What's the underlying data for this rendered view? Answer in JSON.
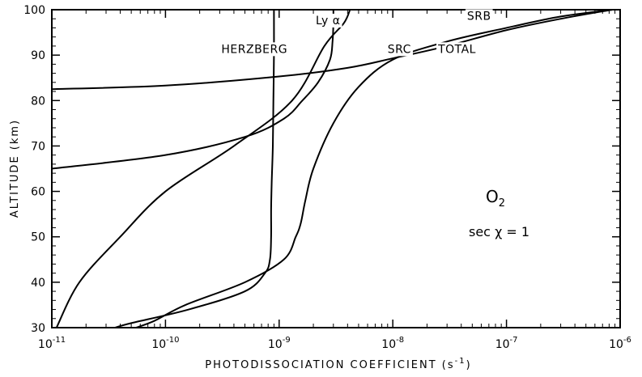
{
  "chart_data": {
    "type": "line",
    "xlabel_text": "PHOTODISSOCIATION COEFFICIENT (s",
    "xlabel_unit_exp": "-1",
    "xlabel_tail": ")",
    "ylabel": "ALTITUDE (km)",
    "x_scale": "log",
    "xlim": [
      1e-11,
      1e-06
    ],
    "ylim": [
      30,
      100
    ],
    "x_ticks": [
      {
        "base": "10",
        "exp": "-11",
        "value": 1e-11
      },
      {
        "base": "10",
        "exp": "-10",
        "value": 1e-10
      },
      {
        "base": "10",
        "exp": "-9",
        "value": 1e-09
      },
      {
        "base": "10",
        "exp": "-8",
        "value": 1e-08
      },
      {
        "base": "10",
        "exp": "-7",
        "value": 1e-07
      },
      {
        "base": "10",
        "exp": "-6",
        "value": 1e-06
      }
    ],
    "y_ticks": [
      "30",
      "40",
      "50",
      "60",
      "70",
      "80",
      "90",
      "100"
    ],
    "grid": false,
    "annotation": {
      "molecule": "O",
      "molecule_sub": "2",
      "condition": "sec χ = 1"
    },
    "series": [
      {
        "name": "HERZBERG",
        "points": [
          [
            9e-10,
            100
          ],
          [
            9e-10,
            90
          ],
          [
            8.9e-10,
            80
          ],
          [
            8.8e-10,
            70
          ],
          [
            8.6e-10,
            62
          ],
          [
            8.5e-10,
            56
          ],
          [
            8.5e-10,
            50
          ],
          [
            8.3e-10,
            45
          ],
          [
            7.5e-10,
            42
          ],
          [
            5e-10,
            38
          ],
          [
            1.6e-10,
            34
          ],
          [
            5e-11,
            31
          ],
          [
            3.6e-11,
            30
          ]
        ]
      },
      {
        "name": "Ly α",
        "points": [
          [
            3e-09,
            100
          ],
          [
            3e-09,
            97
          ],
          [
            2.95e-09,
            93
          ],
          [
            2.8e-09,
            89
          ],
          [
            2.2e-09,
            84
          ],
          [
            1.6e-09,
            80
          ],
          [
            1.1e-09,
            76
          ],
          [
            5e-10,
            72
          ],
          [
            1e-10,
            68
          ],
          [
            1e-11,
            65
          ]
        ]
      },
      {
        "name": "SRC",
        "points": [
          [
            1e-11,
            82.5
          ],
          [
            1e-10,
            83.3
          ],
          [
            1e-09,
            85.3
          ],
          [
            4e-09,
            87.2
          ],
          [
            1e-08,
            89.3
          ],
          [
            3e-08,
            92.0
          ],
          [
            1e-07,
            95.5
          ],
          [
            3e-07,
            98.0
          ],
          [
            8.5e-07,
            100
          ]
        ]
      },
      {
        "name": "SRB",
        "points": [
          [
            4.2e-09,
            100
          ],
          [
            3.7e-09,
            97
          ],
          [
            2.5e-09,
            92
          ],
          [
            1.3e-09,
            80
          ],
          [
            4e-10,
            70
          ],
          [
            1e-10,
            60
          ],
          [
            4e-11,
            50
          ],
          [
            1.75e-11,
            40
          ],
          [
            1.1e-11,
            30
          ]
        ]
      },
      {
        "name": "TOTAL",
        "points": [
          [
            8.5e-07,
            100
          ],
          [
            3e-07,
            98.5
          ],
          [
            1e-07,
            96
          ],
          [
            3e-08,
            93
          ],
          [
            1e-08,
            89
          ],
          [
            5e-09,
            83
          ],
          [
            3e-09,
            75
          ],
          [
            2e-09,
            65
          ],
          [
            1.7e-09,
            58
          ],
          [
            1.55e-09,
            53
          ],
          [
            1.4e-09,
            50
          ],
          [
            1.1e-09,
            45
          ],
          [
            5e-10,
            40
          ],
          [
            1.5e-10,
            35
          ],
          [
            8e-11,
            31.5
          ],
          [
            5.5e-11,
            30
          ]
        ]
      }
    ],
    "curve_labels": [
      {
        "text": "HERZBERG",
        "x": 3.1e-10,
        "y": 90.5
      },
      {
        "text": "Ly α",
        "x": 2.1e-09,
        "y": 96.8
      },
      {
        "text": "SRC",
        "x": 9e-09,
        "y": 90.5
      },
      {
        "text": "SRB",
        "x": 4.5e-08,
        "y": 97.8
      },
      {
        "text": "TOTAL",
        "x": 2.5e-08,
        "y": 90.5
      }
    ]
  }
}
